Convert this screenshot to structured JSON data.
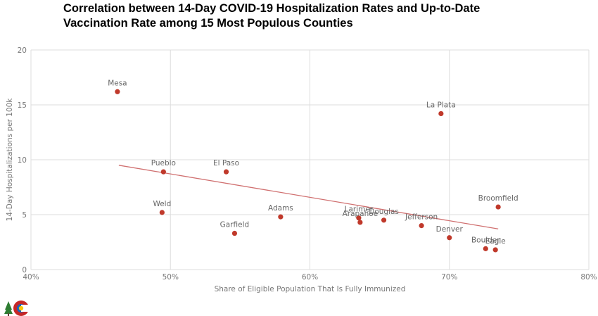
{
  "title_line1": "Correlation between 14-Day COVID-19 Hospitalization Rates and Up-to-Date",
  "title_line2": "Vaccination Rate among 15 Most Populous Counties",
  "colors": {
    "point": "#c0392b",
    "trend": "#d07070",
    "grid": "#dddddd",
    "text": "#777777"
  },
  "chart_data": {
    "type": "scatter",
    "title": "Correlation between 14-Day COVID-19 Hospitalization Rates and Up-to-Date Vaccination Rate among 15 Most Populous Counties",
    "xlabel": "Share of Eligible Population That Is Fully Immunized",
    "ylabel": "14-Day Hospitalizations per 100k",
    "xlim": [
      40,
      80
    ],
    "ylim": [
      0,
      20
    ],
    "x_ticks": [
      "40%",
      "50%",
      "60%",
      "70%",
      "80%"
    ],
    "y_ticks": [
      "0",
      "5",
      "10",
      "15",
      "20"
    ],
    "grid": true,
    "points": [
      {
        "label": "Mesa",
        "x": 46.2,
        "y": 16.2
      },
      {
        "label": "La Plata",
        "x": 69.4,
        "y": 14.2
      },
      {
        "label": "Pueblo",
        "x": 49.5,
        "y": 8.9
      },
      {
        "label": "El Paso",
        "x": 54.0,
        "y": 8.9
      },
      {
        "label": "Weld",
        "x": 49.4,
        "y": 5.2
      },
      {
        "label": "Broomfield",
        "x": 73.5,
        "y": 5.7
      },
      {
        "label": "Adams",
        "x": 57.9,
        "y": 4.8
      },
      {
        "label": "Larimer",
        "x": 63.5,
        "y": 4.7
      },
      {
        "label": "Douglas",
        "x": 65.3,
        "y": 4.5
      },
      {
        "label": "Arapahoe",
        "x": 63.6,
        "y": 4.3
      },
      {
        "label": "Jefferson",
        "x": 68.0,
        "y": 4.0
      },
      {
        "label": "Garfield",
        "x": 54.6,
        "y": 3.3
      },
      {
        "label": "Denver",
        "x": 70.0,
        "y": 2.9
      },
      {
        "label": "Boulder",
        "x": 72.6,
        "y": 1.9
      },
      {
        "label": "Eagle",
        "x": 73.3,
        "y": 1.8
      }
    ],
    "trendline": {
      "x": [
        46.3,
        73.5
      ],
      "y": [
        9.5,
        3.7
      ]
    }
  }
}
